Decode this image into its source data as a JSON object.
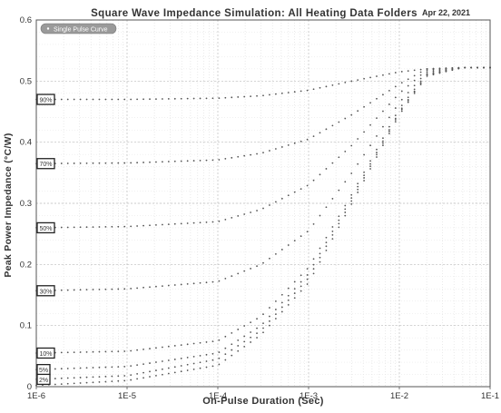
{
  "chart_data": {
    "type": "scatter",
    "title": "Square Wave Impedance Simulation: All Heating Data Folders",
    "date": "Apr 22, 2021",
    "xlabel": "On-Pulse Duration (Sec)",
    "ylabel": "Peak Power Impedance (°C/W)",
    "x_scale": "log",
    "xlim": [
      1e-06,
      0.1
    ],
    "ylim": [
      0,
      0.6
    ],
    "x_ticks": [
      "1E-6",
      "1E-5",
      "1E-4",
      "1E-3",
      "1E-2",
      "1E-1"
    ],
    "y_ticks": [
      "0",
      "0.1",
      "0.2",
      "0.3",
      "0.4",
      "0.5",
      "0.6"
    ],
    "grid": true,
    "legend": {
      "position": "top-left",
      "entries": [
        "Single Pulse Curve"
      ]
    },
    "series": [
      {
        "name": "90%",
        "x": [
          1e-06,
          1e-05,
          0.0001,
          0.0003,
          0.001,
          0.003,
          0.01,
          0.02,
          0.05,
          0.1
        ],
        "y": [
          0.47,
          0.47,
          0.472,
          0.476,
          0.485,
          0.5,
          0.515,
          0.52,
          0.522,
          0.522
        ]
      },
      {
        "name": "70%",
        "x": [
          1e-06,
          1e-05,
          0.0001,
          0.0003,
          0.001,
          0.003,
          0.01,
          0.02,
          0.05,
          0.1
        ],
        "y": [
          0.365,
          0.366,
          0.371,
          0.382,
          0.405,
          0.445,
          0.495,
          0.52,
          0.522,
          0.522
        ]
      },
      {
        "name": "50%",
        "x": [
          1e-06,
          1e-05,
          0.0001,
          0.0003,
          0.001,
          0.003,
          0.01,
          0.02,
          0.05,
          0.1
        ],
        "y": [
          0.26,
          0.262,
          0.27,
          0.29,
          0.33,
          0.395,
          0.48,
          0.518,
          0.522,
          0.522
        ]
      },
      {
        "name": "30%",
        "x": [
          1e-06,
          1e-05,
          0.0001,
          0.0003,
          0.001,
          0.003,
          0.01,
          0.02,
          0.05,
          0.1
        ],
        "y": [
          0.157,
          0.16,
          0.172,
          0.2,
          0.255,
          0.35,
          0.465,
          0.515,
          0.522,
          0.522
        ]
      },
      {
        "name": "10%",
        "x": [
          1e-06,
          1e-05,
          0.0001,
          0.0003,
          0.001,
          0.003,
          0.01,
          0.02,
          0.05,
          0.1
        ],
        "y": [
          0.055,
          0.058,
          0.075,
          0.115,
          0.195,
          0.315,
          0.455,
          0.512,
          0.522,
          0.522
        ]
      },
      {
        "name": "5%",
        "x": [
          1e-06,
          1e-05,
          0.0001,
          0.0003,
          0.001,
          0.003,
          0.01,
          0.02,
          0.05,
          0.1
        ],
        "y": [
          0.028,
          0.033,
          0.055,
          0.1,
          0.185,
          0.31,
          0.45,
          0.51,
          0.522,
          0.522
        ]
      },
      {
        "name": "2%",
        "x": [
          1e-06,
          1e-05,
          0.0001,
          0.0003,
          0.001,
          0.003,
          0.01,
          0.02,
          0.05,
          0.1
        ],
        "y": [
          0.012,
          0.018,
          0.045,
          0.092,
          0.178,
          0.305,
          0.448,
          0.51,
          0.522,
          0.522
        ]
      },
      {
        "name": "Single Pulse Curve",
        "x": [
          1e-06,
          1e-05,
          0.0001,
          0.0003,
          0.001,
          0.003,
          0.01,
          0.02,
          0.05,
          0.1
        ],
        "y": [
          0.002,
          0.01,
          0.035,
          0.085,
          0.17,
          0.3,
          0.445,
          0.508,
          0.522,
          0.522
        ]
      }
    ]
  }
}
